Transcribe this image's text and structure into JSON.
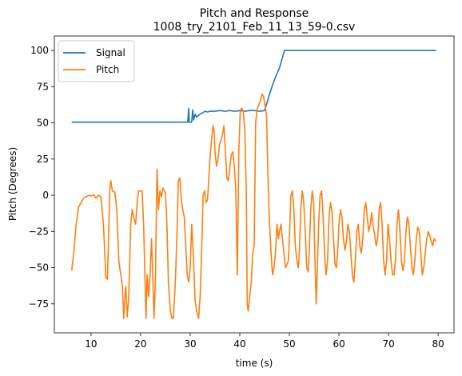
{
  "chart_data": {
    "type": "line",
    "title": "Pitch and Response",
    "subtitle": "1008_try_2101_Feb_11_13_59-0.csv",
    "xlabel": "time (s)",
    "ylabel": "Pitch (Degrees)",
    "xlim": [
      2.6,
      83.2
    ],
    "ylim": [
      -95,
      110
    ],
    "xticks": [
      10,
      20,
      30,
      40,
      50,
      60,
      70,
      80
    ],
    "yticks": [
      -75,
      -50,
      -25,
      0,
      25,
      50,
      75,
      100
    ],
    "grid": false,
    "legend_position": "top-left",
    "series": [
      {
        "name": "Signal",
        "color": "#1f77b4",
        "points": [
          [
            6.1,
            50.5
          ],
          [
            29.5,
            50.5
          ],
          [
            29.7,
            60
          ],
          [
            29.8,
            50.5
          ],
          [
            30.3,
            50.5
          ],
          [
            30.5,
            59
          ],
          [
            30.7,
            52
          ],
          [
            31,
            56
          ],
          [
            31.3,
            54
          ],
          [
            31.6,
            55
          ],
          [
            32,
            56
          ],
          [
            32.5,
            57
          ],
          [
            33,
            58
          ],
          [
            33.5,
            57.5
          ],
          [
            34,
            58
          ],
          [
            35,
            58
          ],
          [
            36,
            58.5
          ],
          [
            37,
            58
          ],
          [
            38,
            58.5
          ],
          [
            39,
            58
          ],
          [
            40,
            58.5
          ],
          [
            41,
            58
          ],
          [
            42,
            58.5
          ],
          [
            43,
            58.5
          ],
          [
            44,
            58
          ],
          [
            45,
            58.5
          ],
          [
            45.5,
            64
          ],
          [
            46,
            70
          ],
          [
            46.5,
            75
          ],
          [
            47,
            80
          ],
          [
            47.5,
            84
          ],
          [
            48,
            88
          ],
          [
            48.5,
            94
          ],
          [
            49,
            100
          ],
          [
            79.6,
            100
          ]
        ]
      },
      {
        "name": "Pitch",
        "color": "#ff7f0e",
        "points": [
          [
            6.1,
            -52
          ],
          [
            6.5,
            -40
          ],
          [
            7,
            -20
          ],
          [
            7.5,
            -8
          ],
          [
            8,
            -5
          ],
          [
            8.5,
            -2
          ],
          [
            9,
            -1
          ],
          [
            9.5,
            0
          ],
          [
            10,
            -0.5
          ],
          [
            10.5,
            0.5
          ],
          [
            11,
            -2
          ],
          [
            11.5,
            0
          ],
          [
            12,
            -1
          ],
          [
            12.5,
            -20
          ],
          [
            13,
            -57
          ],
          [
            13.3,
            -58
          ],
          [
            13.6,
            -20
          ],
          [
            13.8,
            5
          ],
          [
            14.0,
            10
          ],
          [
            14.3,
            3
          ],
          [
            14.8,
            2
          ],
          [
            15.2,
            -10
          ],
          [
            15.6,
            -45
          ],
          [
            16,
            -55
          ],
          [
            16.3,
            -62
          ],
          [
            16.6,
            -85
          ],
          [
            16.8,
            -70
          ],
          [
            17,
            -63
          ],
          [
            17.3,
            -84
          ],
          [
            17.6,
            -70
          ],
          [
            18,
            -20
          ],
          [
            18.3,
            -10
          ],
          [
            18.6,
            -15
          ],
          [
            19,
            -20
          ],
          [
            19.3,
            -5
          ],
          [
            19.6,
            3
          ],
          [
            20,
            3
          ],
          [
            20.3,
            3
          ],
          [
            20.6,
            -20
          ],
          [
            20.9,
            -60
          ],
          [
            21.1,
            -85
          ],
          [
            21.3,
            -55
          ],
          [
            21.6,
            -70
          ],
          [
            21.9,
            -55
          ],
          [
            22.2,
            -30
          ],
          [
            22.5,
            -62
          ],
          [
            22.7,
            -85
          ],
          [
            23,
            -55
          ],
          [
            23.3,
            18
          ],
          [
            23.6,
            -10
          ],
          [
            23.9,
            3
          ],
          [
            24.2,
            -1
          ],
          [
            24.5,
            5
          ],
          [
            24.8,
            3
          ],
          [
            25,
            2
          ],
          [
            25.3,
            -20
          ],
          [
            25.6,
            -60
          ],
          [
            26,
            -80
          ],
          [
            26.3,
            -85
          ],
          [
            26.6,
            -85
          ],
          [
            27,
            -60
          ],
          [
            27.3,
            -30
          ],
          [
            27.6,
            10
          ],
          [
            27.9,
            12
          ],
          [
            28.2,
            -3
          ],
          [
            28.5,
            -10
          ],
          [
            28.8,
            -15
          ],
          [
            29.1,
            -35
          ],
          [
            29.4,
            -55
          ],
          [
            29.7,
            -60
          ],
          [
            30,
            -50
          ],
          [
            30.3,
            -20
          ],
          [
            30.6,
            -40
          ],
          [
            31,
            -73
          ],
          [
            31.3,
            -80
          ],
          [
            31.7,
            -85
          ],
          [
            32,
            -70
          ],
          [
            32.3,
            -40
          ],
          [
            32.6,
            0
          ],
          [
            32.9,
            3
          ],
          [
            33.2,
            -5
          ],
          [
            33.5,
            -3
          ],
          [
            33.8,
            15
          ],
          [
            34.1,
            30
          ],
          [
            34.4,
            42
          ],
          [
            34.6,
            48
          ],
          [
            34.8,
            45
          ],
          [
            35,
            30
          ],
          [
            35.3,
            20
          ],
          [
            35.6,
            25
          ],
          [
            35.9,
            35
          ],
          [
            36.2,
            38
          ],
          [
            36.5,
            42
          ],
          [
            36.8,
            48
          ],
          [
            37.1,
            30
          ],
          [
            37.4,
            12
          ],
          [
            37.7,
            10
          ],
          [
            38,
            20
          ],
          [
            38.3,
            28
          ],
          [
            38.6,
            30
          ],
          [
            38.9,
            20
          ],
          [
            39.2,
            3
          ],
          [
            39.5,
            -55
          ],
          [
            39.8,
            30
          ],
          [
            40.1,
            59
          ],
          [
            40.4,
            60
          ],
          [
            40.7,
            58
          ],
          [
            41,
            45
          ],
          [
            41.3,
            5
          ],
          [
            41.5,
            -75
          ],
          [
            41.7,
            -80
          ],
          [
            42,
            -70
          ],
          [
            42.3,
            -60
          ],
          [
            42.6,
            -40
          ],
          [
            42.9,
            -35
          ],
          [
            43.2,
            50
          ],
          [
            43.5,
            60
          ],
          [
            43.8,
            62
          ],
          [
            44.2,
            66
          ],
          [
            44.5,
            70
          ],
          [
            44.8,
            68
          ],
          [
            45.1,
            62
          ],
          [
            45.4,
            55
          ],
          [
            45.7,
            10
          ],
          [
            46,
            -20
          ],
          [
            46.3,
            -40
          ],
          [
            46.6,
            -55
          ],
          [
            46.9,
            -50
          ],
          [
            47.2,
            -40
          ],
          [
            47.5,
            -20
          ],
          [
            47.8,
            -30
          ],
          [
            48,
            -25
          ],
          [
            48.3,
            -20
          ],
          [
            48.6,
            -30
          ],
          [
            48.9,
            -40
          ],
          [
            49.2,
            -50
          ],
          [
            49.5,
            -48
          ],
          [
            49.8,
            -45
          ],
          [
            50,
            -30
          ],
          [
            50.3,
            0
          ],
          [
            50.6,
            3
          ],
          [
            50.9,
            -10
          ],
          [
            51.2,
            -35
          ],
          [
            51.5,
            -45
          ],
          [
            51.8,
            -50
          ],
          [
            52,
            -40
          ],
          [
            52.3,
            -10
          ],
          [
            52.6,
            3
          ],
          [
            52.9,
            -5
          ],
          [
            53.2,
            -25
          ],
          [
            53.5,
            -50
          ],
          [
            53.8,
            -53
          ],
          [
            54,
            -40
          ],
          [
            54.3,
            -10
          ],
          [
            54.6,
            3
          ],
          [
            54.9,
            -5
          ],
          [
            55.2,
            -50
          ],
          [
            55.4,
            -75
          ],
          [
            55.6,
            -55
          ],
          [
            55.9,
            -20
          ],
          [
            56.2,
            0
          ],
          [
            56.5,
            3
          ],
          [
            56.8,
            -15
          ],
          [
            57.1,
            -40
          ],
          [
            57.4,
            -55
          ],
          [
            57.7,
            -45
          ],
          [
            58,
            -15
          ],
          [
            58.3,
            -5
          ],
          [
            58.6,
            -12
          ],
          [
            58.9,
            -30
          ],
          [
            59.2,
            -48
          ],
          [
            59.5,
            -50
          ],
          [
            59.8,
            -35
          ],
          [
            60,
            -20
          ],
          [
            60.3,
            -10
          ],
          [
            60.6,
            -15
          ],
          [
            60.9,
            -30
          ],
          [
            61.2,
            -38
          ],
          [
            61.5,
            -32
          ],
          [
            61.8,
            -20
          ],
          [
            62.1,
            -25
          ],
          [
            62.4,
            -40
          ],
          [
            62.7,
            -55
          ],
          [
            63,
            -60
          ],
          [
            63.3,
            -45
          ],
          [
            63.6,
            -25
          ],
          [
            63.9,
            -20
          ],
          [
            64.2,
            -35
          ],
          [
            64.5,
            -40
          ],
          [
            64.8,
            -30
          ],
          [
            65.1,
            -10
          ],
          [
            65.4,
            -5
          ],
          [
            65.7,
            -15
          ],
          [
            66,
            -25
          ],
          [
            66.3,
            -20
          ],
          [
            66.6,
            -12
          ],
          [
            66.9,
            -22
          ],
          [
            67.2,
            -27
          ],
          [
            67.5,
            -35
          ],
          [
            67.8,
            -30
          ],
          [
            68.1,
            -10
          ],
          [
            68.4,
            -5
          ],
          [
            68.7,
            -20
          ],
          [
            69,
            -45
          ],
          [
            69.3,
            -55
          ],
          [
            69.6,
            -45
          ],
          [
            69.9,
            -20
          ],
          [
            70.2,
            -30
          ],
          [
            70.5,
            -45
          ],
          [
            70.8,
            -55
          ],
          [
            71.1,
            -55
          ],
          [
            71.4,
            -45
          ],
          [
            71.7,
            -20
          ],
          [
            72,
            -10
          ],
          [
            72.3,
            -25
          ],
          [
            72.6,
            -45
          ],
          [
            72.9,
            -52
          ],
          [
            73.2,
            -45
          ],
          [
            73.5,
            -25
          ],
          [
            73.8,
            -15
          ],
          [
            74.1,
            -20
          ],
          [
            74.4,
            -35
          ],
          [
            74.7,
            -50
          ],
          [
            75,
            -55
          ],
          [
            75.3,
            -45
          ],
          [
            75.6,
            -30
          ],
          [
            75.9,
            -22
          ],
          [
            76.2,
            -25
          ],
          [
            76.5,
            -40
          ],
          [
            76.8,
            -55
          ],
          [
            77.1,
            -50
          ],
          [
            77.4,
            -40
          ],
          [
            77.7,
            -30
          ],
          [
            78,
            -25
          ],
          [
            78.3,
            -28
          ],
          [
            78.6,
            -32
          ],
          [
            78.9,
            -35
          ],
          [
            79.2,
            -30
          ],
          [
            79.5,
            -32
          ]
        ]
      }
    ]
  }
}
